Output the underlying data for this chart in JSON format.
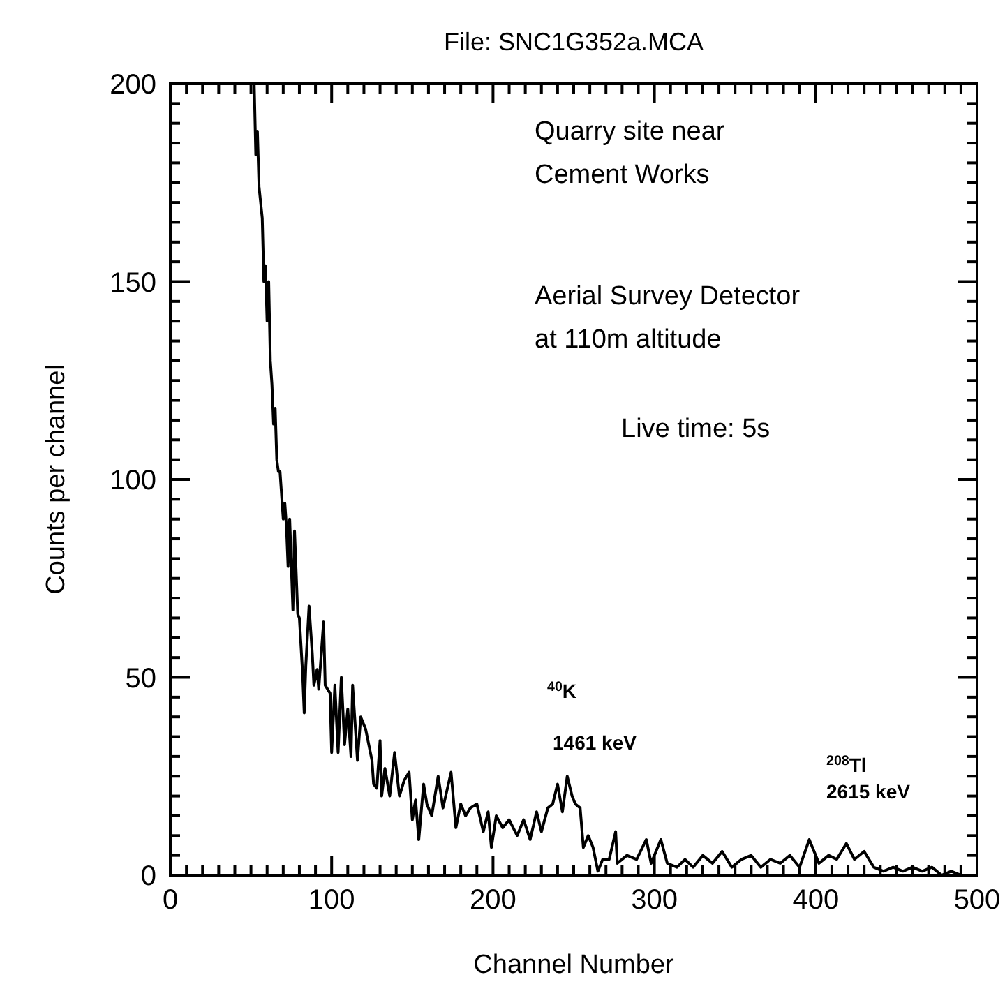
{
  "chart_data": {
    "type": "line",
    "title": "File: SNC1G352a.MCA",
    "xlabel": "Channel Number",
    "ylabel": "Counts per channel",
    "xlim": [
      0,
      500
    ],
    "ylim": [
      0,
      200
    ],
    "xticks": [
      0,
      {
        "value": 10,
        "label": null
      },
      {
        "value": 20,
        "label": null
      },
      {
        "value": 30,
        "label": null
      },
      {
        "value": 40,
        "label": null
      },
      {
        "value": 50,
        "label": null
      },
      {
        "value": 60,
        "label": null
      },
      {
        "value": 70,
        "label": null
      },
      {
        "value": 80,
        "label": null
      },
      {
        "value": 90,
        "label": null
      },
      100,
      {
        "value": 110,
        "label": null
      },
      {
        "value": 120,
        "label": null
      },
      {
        "value": 130,
        "label": null
      },
      {
        "value": 140,
        "label": null
      },
      {
        "value": 150,
        "label": null
      },
      {
        "value": 160,
        "label": null
      },
      {
        "value": 170,
        "label": null
      },
      {
        "value": 180,
        "label": null
      },
      {
        "value": 190,
        "label": null
      },
      200,
      {
        "value": 210,
        "label": null
      },
      {
        "value": 220,
        "label": null
      },
      {
        "value": 230,
        "label": null
      },
      {
        "value": 240,
        "label": null
      },
      {
        "value": 250,
        "label": null
      },
      {
        "value": 260,
        "label": null
      },
      {
        "value": 270,
        "label": null
      },
      {
        "value": 280,
        "label": null
      },
      {
        "value": 290,
        "label": null
      },
      300,
      {
        "value": 310,
        "label": null
      },
      {
        "value": 320,
        "label": null
      },
      {
        "value": 330,
        "label": null
      },
      {
        "value": 340,
        "label": null
      },
      {
        "value": 350,
        "label": null
      },
      {
        "value": 360,
        "label": null
      },
      {
        "value": 370,
        "label": null
      },
      {
        "value": 380,
        "label": null
      },
      {
        "value": 390,
        "label": null
      },
      400,
      {
        "value": 410,
        "label": null
      },
      {
        "value": 420,
        "label": null
      },
      {
        "value": 430,
        "label": null
      },
      {
        "value": 440,
        "label": null
      },
      {
        "value": 450,
        "label": null
      },
      {
        "value": 460,
        "label": null
      },
      {
        "value": 470,
        "label": null
      },
      {
        "value": 480,
        "label": null
      },
      {
        "value": 490,
        "label": null
      },
      500
    ],
    "yticks": [
      0,
      {
        "value": 5,
        "label": null
      },
      {
        "value": 10,
        "label": null
      },
      {
        "value": 15,
        "label": null
      },
      {
        "value": 20,
        "label": null
      },
      {
        "value": 25,
        "label": null
      },
      {
        "value": 30,
        "label": null
      },
      {
        "value": 35,
        "label": null
      },
      {
        "value": 40,
        "label": null
      },
      {
        "value": 45,
        "label": null
      },
      50,
      {
        "value": 55,
        "label": null
      },
      {
        "value": 60,
        "label": null
      },
      {
        "value": 65,
        "label": null
      },
      {
        "value": 70,
        "label": null
      },
      {
        "value": 75,
        "label": null
      },
      {
        "value": 80,
        "label": null
      },
      {
        "value": 85,
        "label": null
      },
      {
        "value": 90,
        "label": null
      },
      {
        "value": 95,
        "label": null
      },
      100,
      {
        "value": 105,
        "label": null
      },
      {
        "value": 110,
        "label": null
      },
      {
        "value": 115,
        "label": null
      },
      {
        "value": 120,
        "label": null
      },
      {
        "value": 125,
        "label": null
      },
      {
        "value": 130,
        "label": null
      },
      {
        "value": 135,
        "label": null
      },
      {
        "value": 140,
        "label": null
      },
      {
        "value": 145,
        "label": null
      },
      150,
      {
        "value": 155,
        "label": null
      },
      {
        "value": 160,
        "label": null
      },
      {
        "value": 165,
        "label": null
      },
      {
        "value": 170,
        "label": null
      },
      {
        "value": 175,
        "label": null
      },
      {
        "value": 180,
        "label": null
      },
      {
        "value": 185,
        "label": null
      },
      {
        "value": 190,
        "label": null
      },
      {
        "value": 195,
        "label": null
      },
      200
    ],
    "grid": false,
    "annotations": [
      "Quarry site near Cement Works",
      "Aerial Survey Detector at 110m altitude",
      "Live time: 5s",
      "$^{40}$K",
      "1461 keV",
      "$^{208}$Tl",
      "2615 keV"
    ],
    "series": [
      {
        "color": "#000000",
        "x": [
          52,
          53,
          54,
          55,
          56,
          57,
          58,
          59,
          60,
          61,
          62,
          63,
          64,
          65,
          66,
          67,
          68,
          70,
          71,
          72,
          73,
          74,
          76,
          77,
          79,
          80,
          82,
          83,
          84,
          86,
          88,
          89,
          91,
          92,
          95,
          96,
          99,
          100,
          102,
          104,
          106,
          108,
          110,
          112,
          113,
          116,
          118,
          121,
          125,
          126,
          128,
          130,
          131,
          133,
          136,
          139,
          142,
          145,
          148,
          150,
          152,
          154,
          157,
          159,
          162,
          166,
          169,
          174,
          177,
          180,
          183,
          186,
          190,
          194,
          197,
          199,
          202,
          206,
          210,
          215,
          219,
          223,
          227,
          230,
          234,
          237,
          240,
          243,
          246,
          249,
          251,
          254,
          256,
          259,
          262,
          265,
          268,
          272,
          276,
          277,
          283,
          289,
          295,
          298,
          304,
          308,
          314,
          319,
          324,
          330,
          336,
          342,
          348,
          354,
          360,
          366,
          372,
          378,
          384,
          390,
          396,
          402,
          408,
          413,
          419,
          424,
          430,
          436,
          442,
          448,
          454,
          460,
          466,
          472,
          478,
          484,
          490
        ],
        "values": [
          200,
          182,
          188,
          174,
          170,
          166,
          150,
          154,
          140,
          150,
          130,
          124,
          114,
          118,
          105,
          102,
          102,
          90,
          94,
          88,
          78,
          90,
          67,
          87,
          66,
          65,
          51,
          41,
          53,
          68,
          56,
          48,
          52,
          47,
          64,
          48,
          46,
          31,
          48,
          31,
          50,
          33,
          42,
          30,
          48,
          29,
          40,
          37,
          29,
          23,
          22,
          34,
          20,
          27,
          20,
          31,
          20,
          24,
          26,
          14,
          19,
          9,
          23,
          18,
          15,
          25,
          17,
          26,
          12,
          18,
          15,
          17,
          18,
          11,
          16,
          7,
          15,
          12,
          14,
          10,
          14,
          9,
          16,
          11,
          17,
          18,
          23,
          16,
          25,
          20,
          18,
          17,
          7,
          10,
          7,
          1,
          4,
          4,
          11,
          3,
          5,
          4,
          9,
          3,
          9,
          3,
          2,
          4,
          2,
          5,
          3,
          6,
          2,
          4,
          5,
          2,
          4,
          3,
          5,
          2,
          9,
          3,
          5,
          4,
          8,
          4,
          6,
          2,
          1,
          2,
          1,
          2,
          1,
          2,
          0,
          1,
          0
        ]
      }
    ]
  }
}
